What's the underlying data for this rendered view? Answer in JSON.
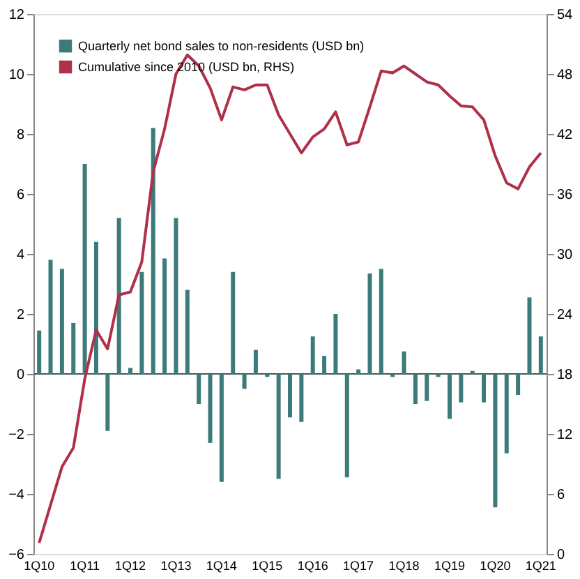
{
  "chart_data": {
    "type": "bar",
    "categories": [
      "1Q10",
      null,
      null,
      null,
      "1Q11",
      null,
      null,
      null,
      "1Q12",
      null,
      null,
      null,
      "1Q13",
      null,
      null,
      null,
      "1Q14",
      null,
      null,
      null,
      "1Q15",
      null,
      null,
      null,
      "1Q16",
      null,
      null,
      null,
      "1Q17",
      null,
      null,
      null,
      "1Q18",
      null,
      null,
      null,
      "1Q19",
      null,
      null,
      null,
      "1Q20",
      null,
      null,
      null,
      "1Q21"
    ],
    "series": [
      {
        "name": "Quarterly net bond sales to non-residents (USD bn)",
        "color": "#3d7a7a",
        "values": [
          1.45,
          3.8,
          3.5,
          1.7,
          7.0,
          4.4,
          -1.9,
          5.2,
          0.2,
          3.4,
          8.2,
          3.85,
          5.2,
          2.8,
          -1.0,
          -2.3,
          -3.6,
          3.4,
          -0.5,
          0.8,
          -0.1,
          -3.5,
          -1.45,
          -1.6,
          1.25,
          0.6,
          2.0,
          -3.45,
          0.15,
          3.35,
          3.5,
          -0.1,
          0.75,
          -1.0,
          -0.9,
          -0.1,
          -1.5,
          -0.95,
          0.1,
          -0.95,
          -4.45,
          -2.65,
          -0.7,
          2.55,
          1.25
        ]
      },
      {
        "name": "Cumulative since 2010 (USD bn, RHS)",
        "type": "line",
        "axis": "y2",
        "color": "#b0304a",
        "values": [
          1.1,
          4.9,
          8.7,
          10.6,
          17.5,
          22.4,
          20.5,
          25.9,
          26.2,
          29.2,
          38.2,
          42.5,
          48,
          49.9,
          48.8,
          46.6,
          43.4,
          46.7,
          46.4,
          46.9,
          46.9,
          43.9,
          42,
          40.1,
          41.7,
          42.5,
          44.2,
          40.9,
          41.2,
          44.7,
          48.3,
          48.1,
          48.8,
          48,
          47.2,
          46.9,
          45.8,
          44.8,
          44.7,
          43.4,
          39.8,
          37.1,
          36.5,
          38.7,
          40.1
        ]
      }
    ],
    "ylim": [
      -6,
      12
    ],
    "yticks": [
      -6,
      -4,
      -2,
      0,
      2,
      4,
      6,
      8,
      10,
      12
    ],
    "y2lim": [
      0,
      54
    ],
    "y2ticks": [
      0,
      6,
      12,
      18,
      24,
      30,
      36,
      42,
      48,
      54
    ],
    "ref_lines": [
      {
        "axis": "y",
        "value": 0
      }
    ],
    "grid": false,
    "legend": "top left",
    "marker": "none",
    "line_style": "solid"
  }
}
